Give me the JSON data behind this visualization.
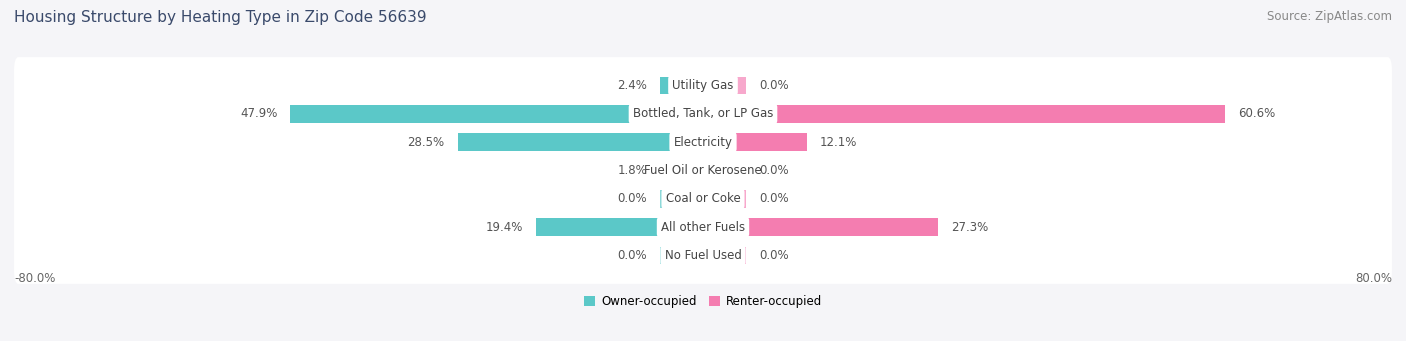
{
  "title": "Housing Structure by Heating Type in Zip Code 56639",
  "source": "Source: ZipAtlas.com",
  "categories": [
    "Utility Gas",
    "Bottled, Tank, or LP Gas",
    "Electricity",
    "Fuel Oil or Kerosene",
    "Coal or Coke",
    "All other Fuels",
    "No Fuel Used"
  ],
  "owner_values": [
    2.4,
    47.9,
    28.5,
    1.8,
    0.0,
    19.4,
    0.0
  ],
  "renter_values": [
    0.0,
    60.6,
    12.1,
    0.0,
    0.0,
    27.3,
    0.0
  ],
  "owner_color": "#5bc8c8",
  "renter_color": "#f47db0",
  "owner_color_light": "#8dd9d9",
  "renter_color_light": "#f7a8cc",
  "background_color": "#f5f5f8",
  "row_bg_color": "#f0f0f5",
  "row_border_color": "#d8d8e0",
  "title_fontsize": 11,
  "source_fontsize": 8.5,
  "label_fontsize": 8.5,
  "value_fontsize": 8.5,
  "axis_label_fontsize": 8.5,
  "xlim_left": -80.0,
  "xlim_right": 80.0,
  "x_left_label": "-80.0%",
  "x_right_label": "80.0%",
  "legend_labels": [
    "Owner-occupied",
    "Renter-occupied"
  ],
  "min_bar_width": 5.0
}
